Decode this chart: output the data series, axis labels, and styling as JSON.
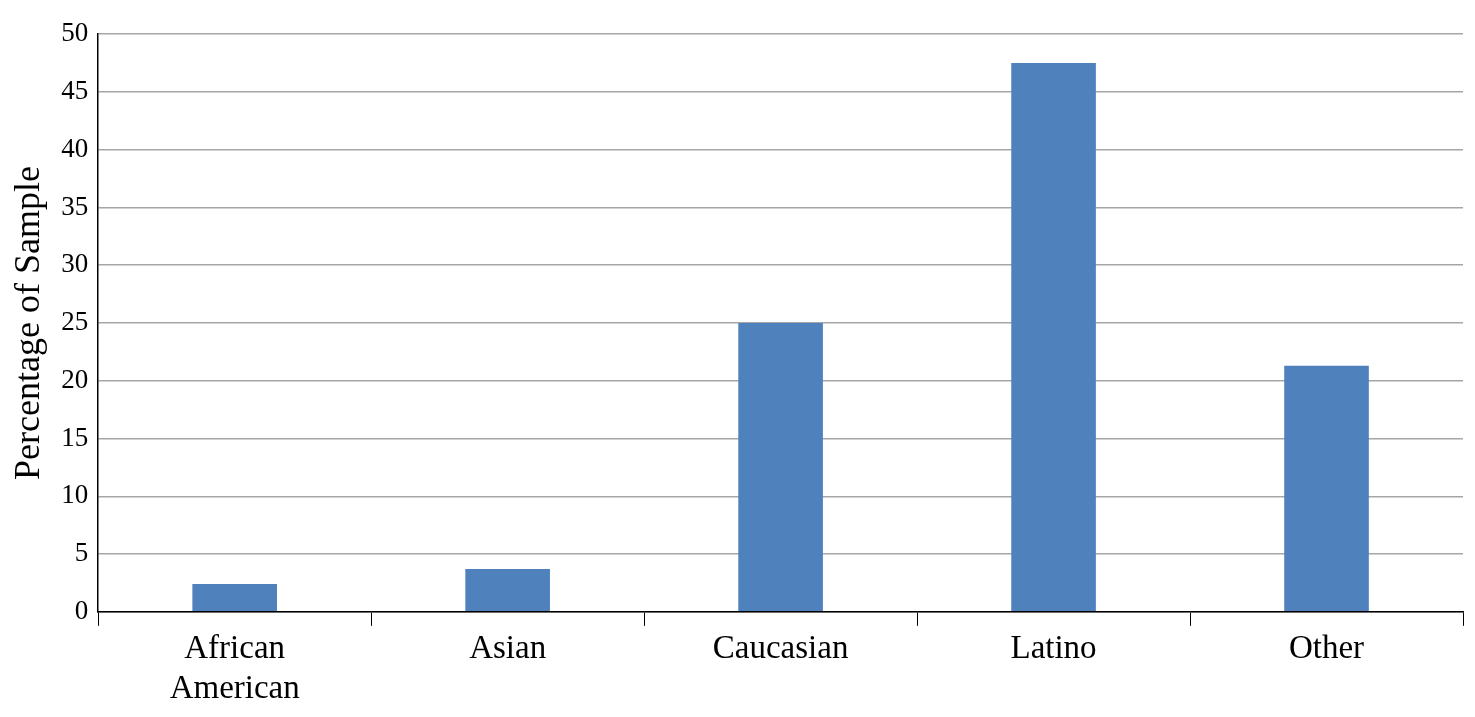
{
  "chart_data": {
    "type": "bar",
    "ylabel": "Percentage of Sample",
    "categories": [
      "African American",
      "Asian",
      "Caucasian",
      "Latino",
      "Other"
    ],
    "values": [
      2.4,
      3.7,
      25.0,
      47.5,
      21.3
    ],
    "color": "#4f81bd",
    "ylim": [
      0,
      50
    ],
    "yticks": [
      0,
      5,
      10,
      15,
      20,
      25,
      30,
      35,
      40,
      45,
      50
    ],
    "grid": "y",
    "legend": false
  }
}
